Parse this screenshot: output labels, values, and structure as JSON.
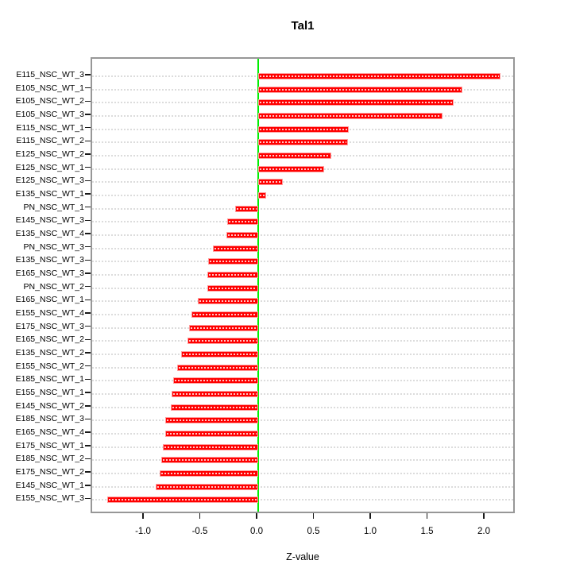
{
  "chart_data": {
    "type": "bar",
    "orientation": "horizontal",
    "title": "Tal1",
    "xlabel": "Z-value",
    "ylabel": "",
    "categories": [
      "E115_NSC_WT_3",
      "E105_NSC_WT_1",
      "E105_NSC_WT_2",
      "E105_NSC_WT_3",
      "E115_NSC_WT_1",
      "E115_NSC_WT_2",
      "E125_NSC_WT_2",
      "E125_NSC_WT_1",
      "E125_NSC_WT_3",
      "E135_NSC_WT_1",
      "PN_NSC_WT_1",
      "E145_NSC_WT_3",
      "E135_NSC_WT_4",
      "PN_NSC_WT_3",
      "E135_NSC_WT_3",
      "E165_NSC_WT_3",
      "PN_NSC_WT_2",
      "E165_NSC_WT_1",
      "E155_NSC_WT_4",
      "E175_NSC_WT_3",
      "E165_NSC_WT_2",
      "E135_NSC_WT_2",
      "E155_NSC_WT_2",
      "E185_NSC_WT_1",
      "E155_NSC_WT_1",
      "E145_NSC_WT_2",
      "E185_NSC_WT_3",
      "E165_NSC_WT_4",
      "E175_NSC_WT_1",
      "E185_NSC_WT_2",
      "E175_NSC_WT_2",
      "E145_NSC_WT_1",
      "E155_NSC_WT_3"
    ],
    "values": [
      2.13,
      1.8,
      1.72,
      1.62,
      0.8,
      0.79,
      0.64,
      0.58,
      0.22,
      0.07,
      -0.2,
      -0.27,
      -0.28,
      -0.4,
      -0.44,
      -0.45,
      -0.45,
      -0.53,
      -0.59,
      -0.61,
      -0.62,
      -0.68,
      -0.71,
      -0.75,
      -0.76,
      -0.77,
      -0.82,
      -0.82,
      -0.84,
      -0.85,
      -0.87,
      -0.9,
      -1.33
    ],
    "x_ticks": [
      -1.0,
      -0.5,
      0.0,
      0.5,
      1.0,
      1.5,
      2.0
    ],
    "x_tick_labels": [
      "-1.0",
      "-0.5",
      "0.0",
      "0.5",
      "1.0",
      "1.5",
      "2.0"
    ],
    "xlim": [
      -1.46,
      2.27
    ],
    "grid": true,
    "legend_position": "none",
    "bar_color": "#ff0000",
    "bar_border_color": "#ff9f9f",
    "zero_line_color": "#00ee00",
    "grid_color": "#dcdcdc",
    "box_color": "#979797"
  }
}
